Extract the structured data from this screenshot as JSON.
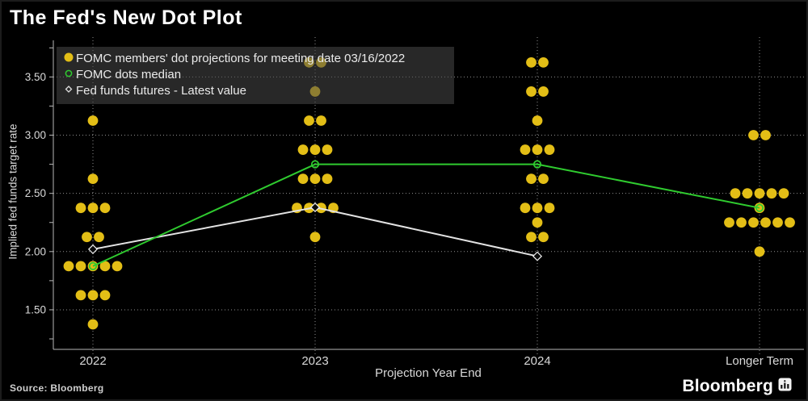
{
  "title": "The Fed's New Dot Plot",
  "footer": {
    "source": "Source: Bloomberg",
    "logo": "Bloomberg"
  },
  "colors": {
    "background": "#000000",
    "dot": "#E3BE16",
    "median": "#2FCB2F",
    "futures": "#E3E3E3",
    "grid": "#8F8F8F",
    "text": "#D9D9D9",
    "legend_panel": "rgba(72,72,72,0.55)"
  },
  "chart_data": {
    "type": "scatter",
    "title": "The Fed's New Dot Plot",
    "xlabel": "Projection Year End",
    "ylabel": "Implied fed funds target rate",
    "categories": [
      "2022",
      "2023",
      "2024",
      "Longer Term"
    ],
    "ylim": [
      1.16,
      3.87
    ],
    "ygrid": [
      1.5,
      2.0,
      2.5,
      3.0,
      3.5
    ],
    "ytick_labels": [
      "1.50",
      "2.00",
      "2.50",
      "3.00",
      "3.50"
    ],
    "ytick_minor_step": 0.25,
    "ytick_minor_range": [
      1.25,
      3.75
    ],
    "grid": "dotted",
    "legend_position": "top-left",
    "series": [
      {
        "name": "FOMC members' dot projections for meeting date 03/16/2022",
        "type": "dots",
        "color": "#E3BE16",
        "dots": [
          [
            {
              "rate": 3.125,
              "count": 1
            },
            {
              "rate": 2.625,
              "count": 1
            },
            {
              "rate": 2.375,
              "count": 3
            },
            {
              "rate": 2.125,
              "count": 2
            },
            {
              "rate": 1.875,
              "count": 5
            },
            {
              "rate": 1.625,
              "count": 3
            },
            {
              "rate": 1.375,
              "count": 1
            }
          ],
          [
            {
              "rate": 3.625,
              "count": 2
            },
            {
              "rate": 3.375,
              "count": 1
            },
            {
              "rate": 3.125,
              "count": 2
            },
            {
              "rate": 2.875,
              "count": 3
            },
            {
              "rate": 2.625,
              "count": 3
            },
            {
              "rate": 2.375,
              "count": 4
            },
            {
              "rate": 2.125,
              "count": 1
            }
          ],
          [
            {
              "rate": 3.625,
              "count": 2
            },
            {
              "rate": 3.375,
              "count": 2
            },
            {
              "rate": 3.125,
              "count": 1
            },
            {
              "rate": 2.875,
              "count": 3
            },
            {
              "rate": 2.625,
              "count": 2
            },
            {
              "rate": 2.375,
              "count": 3
            },
            {
              "rate": 2.25,
              "count": 1
            },
            {
              "rate": 2.125,
              "count": 2
            }
          ],
          [
            {
              "rate": 3.0,
              "count": 2
            },
            {
              "rate": 2.5,
              "count": 5
            },
            {
              "rate": 2.375,
              "count": 1
            },
            {
              "rate": 2.25,
              "count": 6
            },
            {
              "rate": 2.0,
              "count": 1
            }
          ]
        ]
      },
      {
        "name": "FOMC dots median",
        "type": "line-circle",
        "color": "#2FCB2F",
        "values": [
          1.875,
          2.75,
          2.75,
          2.375
        ]
      },
      {
        "name": "Fed funds futures - Latest value",
        "type": "line-diamond",
        "color": "#E3E3E3",
        "values": [
          2.02,
          2.38,
          1.96,
          null
        ]
      }
    ]
  }
}
